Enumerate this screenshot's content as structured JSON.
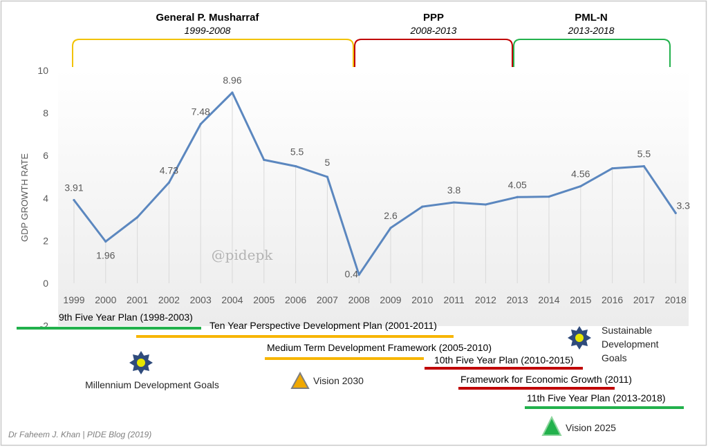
{
  "chart_data": {
    "type": "line",
    "ylabel": "GDP GROWTH RATE",
    "ylim": [
      -2,
      10
    ],
    "yticks": [
      "-2",
      "0",
      "2",
      "4",
      "6",
      "8",
      "10"
    ],
    "grid": false,
    "x": [
      "1999",
      "2000",
      "2001",
      "2002",
      "2003",
      "2004",
      "2005",
      "2006",
      "2007",
      "2008",
      "2009",
      "2010",
      "2011",
      "2012",
      "2013",
      "2014",
      "2015",
      "2016",
      "2017",
      "2018"
    ],
    "values": [
      3.91,
      1.96,
      3.1,
      4.73,
      7.48,
      8.96,
      5.8,
      5.5,
      5.0,
      0.4,
      2.6,
      3.6,
      3.8,
      3.7,
      4.05,
      4.07,
      4.56,
      5.4,
      5.5,
      3.3
    ],
    "data_labels": [
      {
        "year": "1999",
        "label": "3.91"
      },
      {
        "year": "2000",
        "label": "1.96"
      },
      {
        "year": "2002",
        "label": "4.73"
      },
      {
        "year": "2003",
        "label": "7.48"
      },
      {
        "year": "2004",
        "label": "8.96"
      },
      {
        "year": "2006",
        "label": "5.5"
      },
      {
        "year": "2007",
        "label": "5"
      },
      {
        "year": "2008",
        "label": "0.4"
      },
      {
        "year": "2009",
        "label": "2.6"
      },
      {
        "year": "2011",
        "label": "3.8"
      },
      {
        "year": "2013",
        "label": "4.05"
      },
      {
        "year": "2015",
        "label": "4.56"
      },
      {
        "year": "2017",
        "label": "5.5"
      },
      {
        "year": "2018",
        "label": "3.3"
      }
    ],
    "line_color": "#5b87bf",
    "watermark": "@pidepk",
    "eras": [
      {
        "name": "General P. Musharraf",
        "years": "1999-2008",
        "color": "#f2c200"
      },
      {
        "name": "PPP",
        "years": "2008-2013",
        "color": "#c00000"
      },
      {
        "name": "PML-N",
        "years": "2013-2018",
        "color": "#22b14c"
      }
    ],
    "plans": [
      {
        "label": "9th Five Year Plan (1998-2003)",
        "color": "#22b14c"
      },
      {
        "label": "Ten Year Perspective Development Plan (2001-2011)",
        "color": "#f7b500"
      },
      {
        "label": "Medium Term Development Framework (2005-2010)",
        "color": "#f7b500"
      },
      {
        "label": "10th Five Year Plan (2010-2015)",
        "color": "#c00000"
      },
      {
        "label": "Framework for Economic Growth (2011)",
        "color": "#c00000"
      },
      {
        "label": "11th Five Year Plan (2013-2018)",
        "color": "#22b14c"
      }
    ],
    "goals": [
      {
        "label": "Millennium Development Goals",
        "icon": "sun-icon"
      },
      {
        "label": "Vision 2030",
        "icon": "triangle-icon"
      },
      {
        "label": "Sustainable Development Goals",
        "icon": "sun-icon"
      },
      {
        "label": "Vision 2025",
        "icon": "triangle-icon"
      }
    ],
    "credit": "Dr Faheem J. Khan | PIDE Blog (2019)"
  }
}
